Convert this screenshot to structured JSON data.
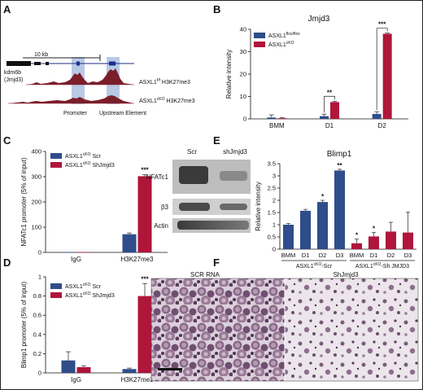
{
  "panel_labels": [
    "A",
    "B",
    "C",
    "D",
    "E",
    "F"
  ],
  "colors": {
    "blue": "#2e4d8a",
    "red": "#b0153a",
    "peak": "#7a1f2a",
    "highlight": "#b8c9e6"
  },
  "panel_a": {
    "scale_label": "10 kb",
    "gene_label_1": "kdm6b",
    "gene_label_2": "(Jmjd3)",
    "track_1_label": "ASXL1",
    "track_1_sup": "f/f",
    "track_1_suffix": " H3K27me3",
    "track_2_label": "ASXL1",
    "track_2_sup": "cKO",
    "track_2_suffix": " H3K27me3",
    "region_1_label": "Promoter",
    "region_2_label": "Upstream Element"
  },
  "panel_e_blot": {
    "lane_labels": [
      "Scr",
      "shJmjd3"
    ],
    "row_labels": [
      "NFATc1",
      "β3",
      "Actin"
    ]
  },
  "panel_f": {
    "image_1_label": "SCR RNA",
    "image_2_label": "ShJmjd3"
  },
  "chart_data": [
    {
      "id": "B",
      "type": "bar",
      "title": "Jmjd3",
      "ylabel": "Relative intensity",
      "ylim": [
        0,
        40
      ],
      "yticks": [
        0,
        10,
        20,
        30,
        40
      ],
      "categories": [
        "BMM",
        "D1",
        "D2"
      ],
      "legend_position": "top-left",
      "series": [
        {
          "name": "ASXL1",
          "sup": "flox/flox",
          "color": "#2e4d8a",
          "values": [
            0.6,
            1.2,
            2.2
          ],
          "errors": [
            1.2,
            0.9,
            1.0
          ]
        },
        {
          "name": "ASXL1",
          "sup": "cKO",
          "color": "#b0153a",
          "values": [
            0.3,
            7.5,
            38.0
          ],
          "errors": [
            0.2,
            0.4,
            0.3
          ]
        }
      ],
      "significance": [
        {
          "category": "D1",
          "label": "**"
        },
        {
          "category": "D2",
          "label": "***"
        }
      ]
    },
    {
      "id": "C",
      "type": "bar",
      "ylabel": "NFATc1 promoter (5% of input)",
      "ylim": [
        0,
        400
      ],
      "yticks": [
        0,
        100,
        200,
        300,
        400
      ],
      "categories": [
        "IgG",
        "H3K27me3"
      ],
      "legend_position": "top-left",
      "series": [
        {
          "name": "ASXL1",
          "sup": "cKO",
          "suffix": " Scr",
          "color": "#2e4d8a",
          "values": [
            0.8,
            72
          ],
          "errors": [
            0,
            5
          ]
        },
        {
          "name": "ASXL1",
          "sup": "cKO",
          "suffix": " ShJmjd3",
          "color": "#b0153a",
          "values": [
            0.8,
            302
          ],
          "errors": [
            0,
            6
          ]
        }
      ],
      "significance": [
        {
          "category": "H3K27me3",
          "label": "***"
        }
      ]
    },
    {
      "id": "D",
      "type": "bar",
      "ylabel": "Blimp1 promoter (5% of input)",
      "ylim": [
        0,
        1.0
      ],
      "yticks": [
        0.0,
        0.2,
        0.4,
        0.6,
        0.8,
        1.0
      ],
      "categories": [
        "IgG",
        "H3K27me3"
      ],
      "legend_position": "top-left",
      "series": [
        {
          "name": "ASXL1",
          "sup": "cKO",
          "suffix": " Scr",
          "color": "#2e4d8a",
          "values": [
            0.13,
            0.04
          ],
          "errors": [
            0.09,
            0.01
          ]
        },
        {
          "name": "ASXL1",
          "sup": "cKO",
          "suffix": " ShJmjd3",
          "color": "#b0153a",
          "values": [
            0.06,
            0.8
          ],
          "errors": [
            0.015,
            0.13
          ]
        }
      ],
      "significance": [
        {
          "category": "H3K27me3",
          "label": "***"
        }
      ]
    },
    {
      "id": "E",
      "type": "bar",
      "title": "Blimp1",
      "ylabel": "Relative intensity",
      "ylim": [
        0,
        3.5
      ],
      "yticks": [
        0,
        0.5,
        1.0,
        1.5,
        2.0,
        2.5,
        3.0,
        3.5
      ],
      "ytick_labels": [
        "0",
        "0.5",
        "1",
        "1.5",
        "2",
        "2.5",
        "3",
        "3.5"
      ],
      "categories": [
        "BMM",
        "D1",
        "D2",
        "D3",
        "BMM",
        "D1",
        "D2",
        "D3"
      ],
      "group_labels": [
        {
          "name": "ASXL1",
          "sup": "cKO",
          "suffix": "-Scr",
          "from": 0,
          "to": 3
        },
        {
          "name": "ASXL1",
          "sup": "cKO",
          "suffix": "-Sh JMJD3",
          "from": 4,
          "to": 7
        }
      ],
      "colors": [
        "#2e4d8a",
        "#2e4d8a",
        "#2e4d8a",
        "#2e4d8a",
        "#b0153a",
        "#b0153a",
        "#b0153a",
        "#b0153a"
      ],
      "values": [
        1.0,
        1.57,
        1.93,
        3.22,
        0.24,
        0.52,
        0.72,
        0.68
      ],
      "errors": [
        0.05,
        0.06,
        0.07,
        0.05,
        0.17,
        0.17,
        0.38,
        0.83
      ],
      "significance": [
        {
          "index": 2,
          "label": "*"
        },
        {
          "index": 3,
          "label": "**"
        },
        {
          "index": 4,
          "label": "*"
        },
        {
          "index": 5,
          "label": "*"
        }
      ]
    }
  ]
}
